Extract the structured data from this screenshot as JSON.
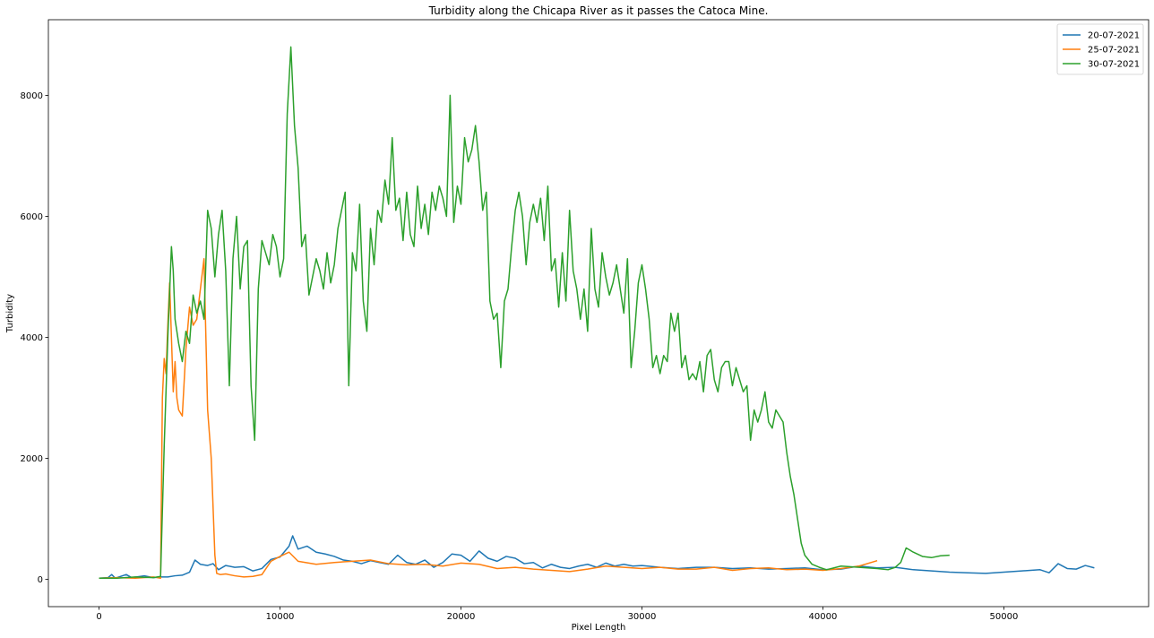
{
  "chart_data": {
    "type": "line",
    "title": "Turbidity along the Chicapa River as it passes the Catoca Mine.",
    "xlabel": "Pixel Length",
    "ylabel": "Turbidity",
    "xlim": [
      -2800,
      58000
    ],
    "ylim": [
      -450,
      9250
    ],
    "xticks": [
      0,
      10000,
      20000,
      30000,
      40000,
      50000
    ],
    "yticks": [
      0,
      2000,
      4000,
      6000,
      8000
    ],
    "grid": false,
    "legend_position": "top-right",
    "series": [
      {
        "name": "20-07-2021",
        "color": "#1f77b4",
        "x": [
          0,
          500,
          700,
          900,
          1500,
          1800,
          2500,
          3000,
          3400,
          3800,
          4200,
          4600,
          5000,
          5300,
          5600,
          6000,
          6300,
          6600,
          7000,
          7500,
          8000,
          8500,
          9000,
          9500,
          10000,
          10500,
          10700,
          11000,
          11500,
          12000,
          12500,
          13000,
          13500,
          14000,
          14500,
          15000,
          15500,
          16000,
          16500,
          17000,
          17500,
          18000,
          18500,
          19000,
          19500,
          20000,
          20500,
          21000,
          21500,
          22000,
          22500,
          23000,
          23500,
          24000,
          24500,
          25000,
          25500,
          26000,
          26500,
          27000,
          27500,
          28000,
          28500,
          29000,
          29500,
          30000,
          31000,
          32000,
          33000,
          34000,
          35000,
          36000,
          37000,
          38000,
          39000,
          40000,
          41000,
          42000,
          43000,
          44000,
          45000,
          46000,
          47000,
          48000,
          49000,
          50000,
          51000,
          52000,
          52500,
          53000,
          53500,
          54000,
          54500,
          55000
        ],
        "values": [
          20,
          30,
          80,
          20,
          80,
          30,
          60,
          30,
          40,
          40,
          60,
          70,
          120,
          320,
          250,
          230,
          260,
          160,
          230,
          200,
          210,
          140,
          180,
          330,
          370,
          550,
          720,
          500,
          550,
          450,
          420,
          380,
          320,
          300,
          260,
          310,
          280,
          250,
          400,
          280,
          250,
          320,
          200,
          280,
          420,
          400,
          300,
          470,
          350,
          300,
          380,
          350,
          260,
          280,
          190,
          250,
          200,
          180,
          220,
          250,
          200,
          270,
          220,
          250,
          220,
          230,
          200,
          180,
          200,
          200,
          180,
          190,
          170,
          180,
          190,
          160,
          170,
          220,
          190,
          200,
          160,
          140,
          120,
          110,
          100,
          120,
          140,
          160,
          110,
          260,
          180,
          170,
          230,
          190
        ]
      },
      {
        "name": "25-07-2021",
        "color": "#ff7f0e",
        "x": [
          0,
          1000,
          2000,
          3000,
          3400,
          3500,
          3600,
          3700,
          3800,
          3900,
          4000,
          4100,
          4200,
          4300,
          4400,
          4600,
          4800,
          5000,
          5200,
          5400,
          5600,
          5800,
          6000,
          6200,
          6400,
          6500,
          6700,
          7000,
          7500,
          8000,
          8500,
          9000,
          9500,
          10000,
          10500,
          11000,
          12000,
          13000,
          14000,
          15000,
          16000,
          17000,
          18000,
          19000,
          20000,
          21000,
          22000,
          23000,
          24000,
          25000,
          26000,
          27000,
          28000,
          29000,
          30000,
          31000,
          32000,
          33000,
          34000,
          35000,
          36000,
          37000,
          38000,
          39000,
          40000,
          41000,
          42000,
          43000
        ],
        "values": [
          20,
          30,
          20,
          40,
          20,
          3000,
          3650,
          3400,
          4200,
          4900,
          4000,
          3100,
          3600,
          3000,
          2800,
          2700,
          3800,
          4500,
          4200,
          4300,
          4800,
          5300,
          2800,
          2000,
          400,
          100,
          80,
          90,
          60,
          40,
          50,
          80,
          300,
          380,
          450,
          300,
          250,
          280,
          300,
          320,
          260,
          240,
          250,
          220,
          270,
          250,
          180,
          200,
          170,
          150,
          130,
          170,
          220,
          200,
          180,
          200,
          170,
          170,
          200,
          150,
          180,
          190,
          160,
          170,
          150,
          180,
          220,
          310
        ]
      },
      {
        "name": "30-07-2021",
        "color": "#2ca02c",
        "x": [
          0,
          1000,
          2000,
          3000,
          3400,
          3600,
          3800,
          4000,
          4100,
          4200,
          4400,
          4600,
          4800,
          5000,
          5200,
          5400,
          5600,
          5800,
          6000,
          6200,
          6400,
          6600,
          6800,
          7000,
          7200,
          7400,
          7600,
          7800,
          8000,
          8200,
          8400,
          8600,
          8800,
          9000,
          9200,
          9400,
          9600,
          9800,
          10000,
          10200,
          10400,
          10600,
          10800,
          11000,
          11200,
          11400,
          11600,
          11800,
          12000,
          12200,
          12400,
          12600,
          12800,
          13000,
          13200,
          13400,
          13600,
          13800,
          14000,
          14200,
          14400,
          14600,
          14800,
          15000,
          15200,
          15400,
          15600,
          15800,
          16000,
          16200,
          16400,
          16600,
          16800,
          17000,
          17200,
          17400,
          17600,
          17800,
          18000,
          18200,
          18400,
          18600,
          18800,
          19000,
          19200,
          19400,
          19600,
          19800,
          20000,
          20200,
          20400,
          20600,
          20800,
          21000,
          21200,
          21400,
          21600,
          21800,
          22000,
          22200,
          22400,
          22600,
          22800,
          23000,
          23200,
          23400,
          23600,
          23800,
          24000,
          24200,
          24400,
          24600,
          24800,
          25000,
          25200,
          25400,
          25600,
          25800,
          26000,
          26200,
          26400,
          26600,
          26800,
          27000,
          27200,
          27400,
          27600,
          27800,
          28000,
          28200,
          28400,
          28600,
          28800,
          29000,
          29200,
          29400,
          29600,
          29800,
          30000,
          30200,
          30400,
          30600,
          30800,
          31000,
          31200,
          31400,
          31600,
          31800,
          32000,
          32200,
          32400,
          32600,
          32800,
          33000,
          33200,
          33400,
          33600,
          33800,
          34000,
          34200,
          34400,
          34600,
          34800,
          35000,
          35200,
          35400,
          35600,
          35800,
          36000,
          36200,
          36400,
          36600,
          36800,
          37000,
          37200,
          37400,
          37600,
          37800,
          38000,
          38200,
          38400,
          38600,
          38800,
          39000,
          39400,
          39800,
          40200,
          41000,
          42000,
          43000,
          43600,
          44000,
          44300,
          44600,
          45000,
          45500,
          46000,
          46500,
          47000
        ],
        "values": [
          20,
          20,
          40,
          30,
          50,
          2200,
          4000,
          5500,
          5100,
          4300,
          3900,
          3600,
          4100,
          3900,
          4700,
          4400,
          4600,
          4300,
          6100,
          5800,
          5000,
          5700,
          6100,
          5100,
          3200,
          5300,
          6000,
          4800,
          5500,
          5600,
          3200,
          2300,
          4800,
          5600,
          5400,
          5200,
          5700,
          5500,
          5000,
          5300,
          7700,
          8800,
          7500,
          6800,
          5500,
          5700,
          4700,
          5000,
          5300,
          5100,
          4800,
          5400,
          4900,
          5200,
          5800,
          6100,
          6400,
          3200,
          5400,
          5100,
          6200,
          4600,
          4100,
          5800,
          5200,
          6100,
          5900,
          6600,
          6200,
          7300,
          6100,
          6300,
          5600,
          6400,
          5700,
          5500,
          6500,
          5800,
          6200,
          5700,
          6400,
          6100,
          6500,
          6300,
          6000,
          8000,
          5900,
          6500,
          6200,
          7300,
          6900,
          7100,
          7500,
          6900,
          6100,
          6400,
          4600,
          4300,
          4400,
          3500,
          4600,
          4800,
          5500,
          6100,
          6400,
          6000,
          5200,
          5900,
          6200,
          5900,
          6300,
          5600,
          6500,
          5100,
          5300,
          4500,
          5400,
          4600,
          6100,
          5100,
          4800,
          4300,
          4800,
          4100,
          5800,
          4800,
          4500,
          5400,
          5000,
          4700,
          4900,
          5200,
          4800,
          4400,
          5300,
          3500,
          4100,
          4900,
          5200,
          4800,
          4300,
          3500,
          3700,
          3400,
          3700,
          3600,
          4400,
          4100,
          4400,
          3500,
          3700,
          3300,
          3400,
          3300,
          3600,
          3100,
          3700,
          3800,
          3300,
          3100,
          3500,
          3600,
          3600,
          3200,
          3500,
          3300,
          3100,
          3200,
          2300,
          2800,
          2600,
          2800,
          3100,
          2600,
          2500,
          2800,
          2700,
          2600,
          2100,
          1700,
          1400,
          1000,
          600,
          400,
          250,
          200,
          160,
          220,
          200,
          180,
          160,
          200,
          280,
          520,
          450,
          380,
          360,
          390,
          400
        ]
      }
    ]
  }
}
